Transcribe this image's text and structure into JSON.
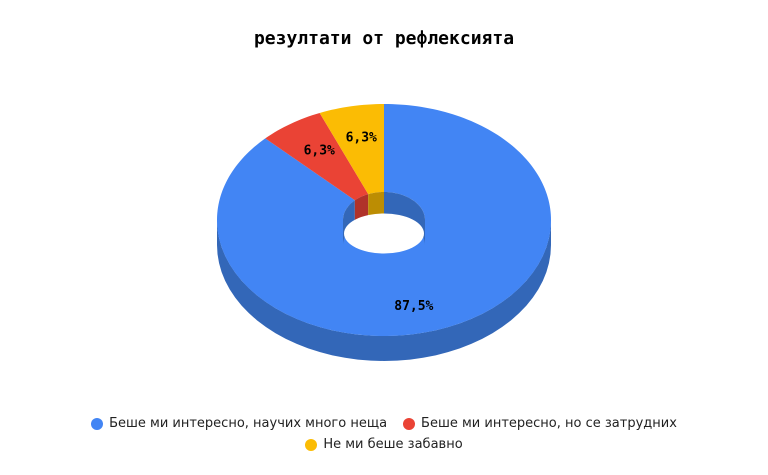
{
  "chart_data": {
    "type": "pie",
    "title": "резултати от рефлексията",
    "donut": true,
    "three_d": true,
    "legend_position": "bottom",
    "slices": [
      {
        "label": "Беше ми интересно, научих много неща",
        "value": 87.5,
        "display": "87,5%",
        "color": "#4285f4",
        "side_color": "#3367b8"
      },
      {
        "label": "Беше ми интересно, но се затрудних",
        "value": 6.3,
        "display": "6,3%",
        "color": "#ea4335",
        "side_color": "#b0322a"
      },
      {
        "label": "Не ми беше забавно",
        "value": 6.3,
        "display": "6,3%",
        "color": "#fbbc04",
        "side_color": "#bc8d03"
      }
    ]
  }
}
